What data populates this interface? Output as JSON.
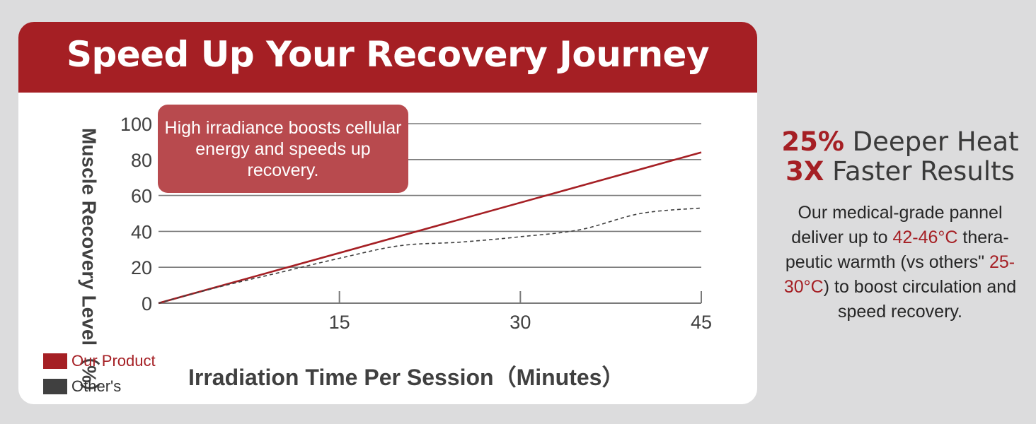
{
  "header": {
    "title": "Speed Up Your Recovery Journey"
  },
  "chart_data": {
    "type": "line",
    "title": "",
    "xlabel": "Irradiation Time Per Session（Minutes）",
    "ylabel": "Muscle Recovery Level（%）",
    "xlim": [
      0,
      45
    ],
    "ylim": [
      0,
      100
    ],
    "x_ticks": [
      15,
      30,
      45
    ],
    "y_ticks": [
      0,
      20,
      40,
      60,
      80,
      100
    ],
    "grid": true,
    "legend_position": "bottom-left",
    "series": [
      {
        "name": "Our Product",
        "color": "#a51f24",
        "style": "solid",
        "x": [
          0,
          45
        ],
        "y": [
          0,
          84
        ]
      },
      {
        "name": "Other's",
        "color": "#404040",
        "style": "dashed",
        "x": [
          0,
          5,
          10,
          15,
          20,
          25,
          30,
          35,
          40,
          45
        ],
        "y": [
          0,
          9,
          17,
          25,
          32,
          34,
          37,
          41,
          50,
          53
        ]
      }
    ],
    "annotation": "High irradiance boosts cellular energy and speeds up recovery."
  },
  "legend": {
    "items": [
      {
        "label": "Our Product",
        "color": "#a51f24",
        "text_color": "#a51f24"
      },
      {
        "label": "Other's",
        "color": "#404040",
        "text_color": "#333333"
      }
    ]
  },
  "side": {
    "line1_accent": "25%",
    "line1_rest": " Deeper Heat",
    "line2_accent": "3X",
    "line2_rest": " Faster Results",
    "body_1": "Our medical-grade pannel deliver up to ",
    "body_temp1": "42-46°C",
    "body_2": " thera-peutic warmth (vs others\" ",
    "body_temp2": "25-30°C",
    "body_3": ") to boost circulation and speed recovery."
  },
  "colors": {
    "brand": "#a51f24",
    "callout": "#b84a4e",
    "background": "#dcdcdd"
  }
}
